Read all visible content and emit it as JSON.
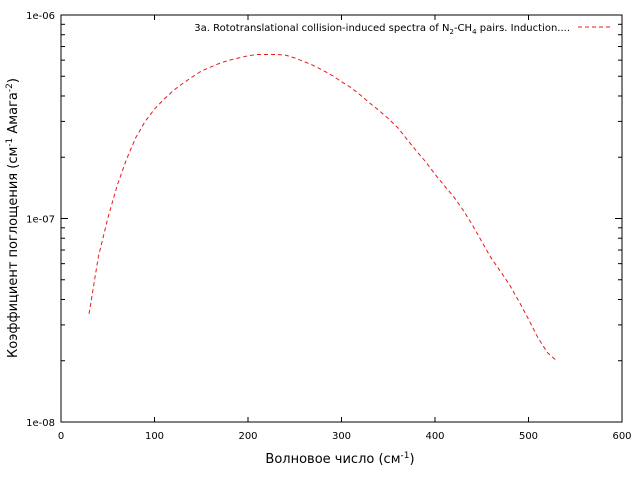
{
  "chart_data": {
    "type": "line",
    "title": "",
    "xlabel": {
      "base": "Волновое число (см",
      "sup": "-1",
      "tail": ")"
    },
    "ylabel": {
      "base": "Коэффициент поглощения (см",
      "sup1": "-1",
      "mid": " Амага",
      "sup2": "-2",
      "tail": ")"
    },
    "xlim": [
      0,
      600
    ],
    "ylim": [
      1e-08,
      1e-06
    ],
    "yscale": "log",
    "grid": false,
    "legend_position": "top-right",
    "x_ticks": [
      0,
      100,
      200,
      300,
      400,
      500,
      600
    ],
    "x_tick_labels": [
      "0",
      "100",
      "200",
      "300",
      "400",
      "500",
      "600"
    ],
    "y_ticks": [
      1e-08,
      1e-07,
      1e-06
    ],
    "y_tick_labels": [
      "1e-08",
      "1e-07",
      "1e-06"
    ],
    "series": [
      {
        "name": "3a. Rototranslational collision-induced spectra of N₂-CH₄ pairs. Induction....",
        "name_parts": {
          "t1": "3a. Rototranslational collision-induced spectra of N",
          "s1": "2",
          "t2": "-CH",
          "s2": "4",
          "t3": " pairs. Induction...."
        },
        "color": "#e41a1c",
        "style": "dashed",
        "x": [
          30,
          40,
          50,
          60,
          70,
          80,
          90,
          100,
          110,
          120,
          130,
          140,
          150,
          160,
          170,
          180,
          190,
          200,
          210,
          220,
          230,
          240,
          250,
          260,
          270,
          280,
          290,
          300,
          310,
          320,
          330,
          340,
          350,
          360,
          370,
          380,
          390,
          400,
          410,
          420,
          430,
          440,
          450,
          460,
          470,
          480,
          490,
          500,
          510,
          520,
          530
        ],
        "y": [
          3.4e-08,
          6.5e-08,
          1e-07,
          1.45e-07,
          1.95e-07,
          2.5e-07,
          3e-07,
          3.45e-07,
          3.85e-07,
          4.25e-07,
          4.6e-07,
          4.95e-07,
          5.3e-07,
          5.55e-07,
          5.8e-07,
          6e-07,
          6.15e-07,
          6.3e-07,
          6.4e-07,
          6.4e-07,
          6.4e-07,
          6.35e-07,
          6.15e-07,
          5.9e-07,
          5.65e-07,
          5.35e-07,
          5.05e-07,
          4.7e-07,
          4.4e-07,
          4.05e-07,
          3.7e-07,
          3.4e-07,
          3.1e-07,
          2.8e-07,
          2.45e-07,
          2.15e-07,
          1.9e-07,
          1.65e-07,
          1.45e-07,
          1.28e-07,
          1.1e-07,
          9.3e-08,
          7.7e-08,
          6.4e-08,
          5.5e-08,
          4.7e-08,
          3.9e-08,
          3.2e-08,
          2.6e-08,
          2.2e-08,
          2e-08
        ]
      }
    ]
  }
}
